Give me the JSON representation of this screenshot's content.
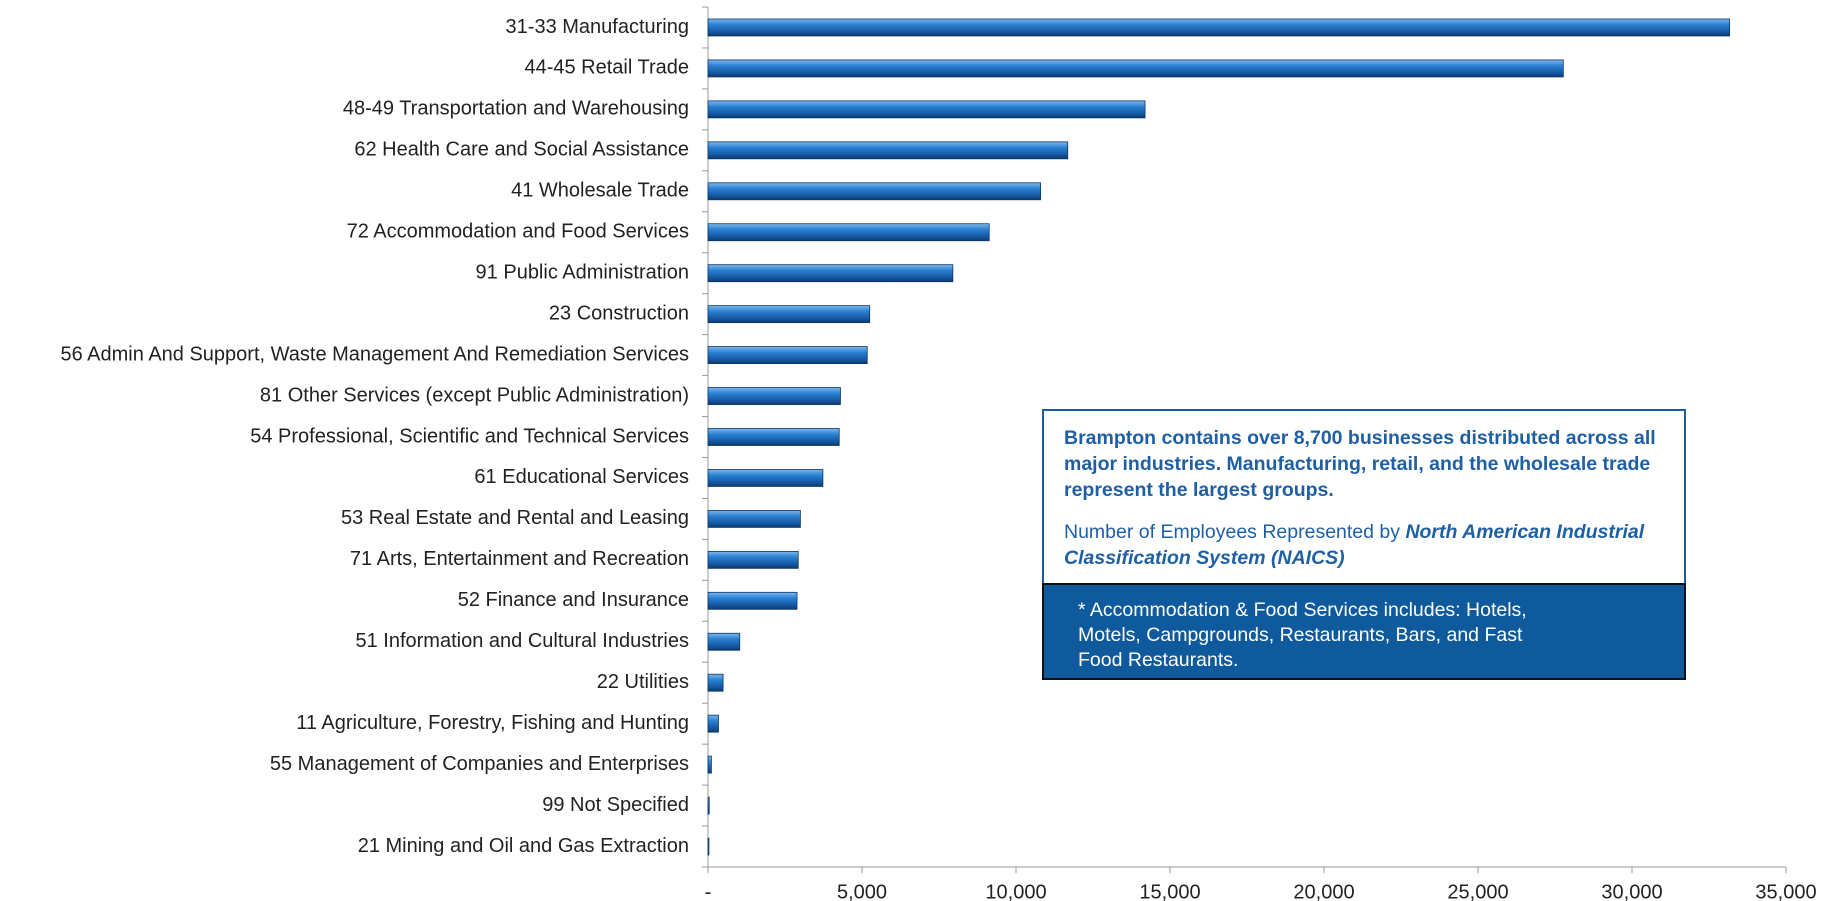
{
  "chart_data": {
    "type": "bar",
    "orientation": "horizontal",
    "categories": [
      "31-33 Manufacturing",
      "44-45 Retail Trade",
      "48-49 Transportation and Warehousing",
      "62 Health Care and Social Assistance",
      "41 Wholesale Trade",
      "72 Accommodation and Food Services",
      "91 Public Administration",
      "23 Construction",
      "56 Admin And Support, Waste Management And Remediation Services",
      "81 Other Services (except Public Administration)",
      "54 Professional, Scientific and Technical Services",
      "61 Educational Services",
      "53 Real Estate and Rental and Leasing",
      "71 Arts, Entertainment and Recreation",
      "52 Finance and Insurance",
      "51 Information and Cultural Industries",
      "22 Utilities",
      "11 Agriculture, Forestry, Fishing and Hunting",
      "55 Management of Companies and Enterprises",
      "99 Not Specified",
      "21 Mining and Oil and Gas Extraction"
    ],
    "values": [
      33170,
      27770,
      14190,
      11680,
      10800,
      9130,
      7950,
      5250,
      5170,
      4300,
      4260,
      3730,
      3000,
      2930,
      2890,
      1030,
      490,
      340,
      110,
      40,
      30
    ],
    "color": "#1f6fc0",
    "xlim": [
      0,
      35000
    ],
    "xticks": [
      {
        "value": 0,
        "label": "-"
      },
      {
        "value": 5000,
        "label": "5,000"
      },
      {
        "value": 10000,
        "label": "10,000"
      },
      {
        "value": 15000,
        "label": "15,000"
      },
      {
        "value": 20000,
        "label": "20,000"
      },
      {
        "value": 25000,
        "label": "25,000"
      },
      {
        "value": 30000,
        "label": "30,000"
      },
      {
        "value": 35000,
        "label": "35,000"
      }
    ],
    "grid": false
  },
  "box": {
    "summary": "Brampton contains over 8,700 businesses distributed across all major industries.  Manufacturing, retail, and the wholesale trade represent the largest groups.",
    "note_lead": "Number of Employees Represented by",
    "note_emph": "North American Industrial Classification System (NAICS)",
    "footnote": "* Accommodation & Food Services includes:  Hotels, Motels, Campgrounds, Restaurants, Bars, and Fast Food Restaurants."
  }
}
